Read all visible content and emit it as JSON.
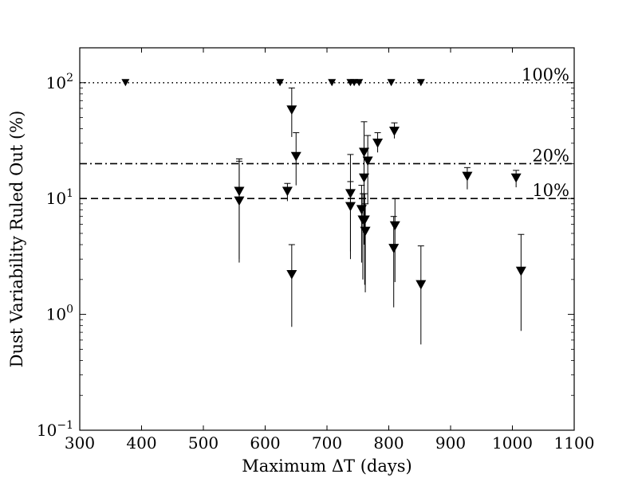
{
  "chart_data": {
    "type": "scatter",
    "title": "",
    "xlabel": "Maximum ΔT (days)",
    "ylabel": "Dust Variability Ruled Out (%)",
    "xlim": [
      300,
      1100
    ],
    "ylim": [
      0.1,
      200
    ],
    "yscale": "log",
    "grid": false,
    "x_ticks": [
      {
        "value": 300,
        "label": "300"
      },
      {
        "value": 400,
        "label": "400"
      },
      {
        "value": 500,
        "label": "500"
      },
      {
        "value": 600,
        "label": "600"
      },
      {
        "value": 700,
        "label": "700"
      },
      {
        "value": 800,
        "label": "800"
      },
      {
        "value": 900,
        "label": "900"
      },
      {
        "value": 1000,
        "label": "1000"
      },
      {
        "value": 1100,
        "label": "1100"
      }
    ],
    "y_ticks": [
      {
        "value": 0.1,
        "base": "10",
        "exp": "−1"
      },
      {
        "value": 1,
        "base": "10",
        "exp": "0"
      },
      {
        "value": 10,
        "base": "10",
        "exp": "1"
      },
      {
        "value": 100,
        "base": "10",
        "exp": "2"
      }
    ],
    "reference_lines": [
      {
        "y": 100,
        "label": "100%",
        "style": "dotted"
      },
      {
        "y": 20,
        "label": "20%",
        "style": "dashdot"
      },
      {
        "y": 10,
        "label": "10%",
        "style": "dashed"
      }
    ],
    "marker": "triangle-down",
    "marker_color": "#000000",
    "series": [
      {
        "points": [
          {
            "x": 374,
            "y": 100
          },
          {
            "x": 624,
            "y": 100
          },
          {
            "x": 708,
            "y": 100
          },
          {
            "x": 738,
            "y": 100
          },
          {
            "x": 744,
            "y": 100
          },
          {
            "x": 752,
            "y": 100
          },
          {
            "x": 804,
            "y": 100
          },
          {
            "x": 852,
            "y": 100
          },
          {
            "x": 558,
            "y": 11.5,
            "err_low": 3.0,
            "err_high": 22.0
          },
          {
            "x": 558,
            "y": 9.5,
            "err_low": 2.8,
            "err_high": 21.0
          },
          {
            "x": 636,
            "y": 11.5,
            "err_low": 9.5,
            "err_high": 13.5
          },
          {
            "x": 643,
            "y": 58,
            "err_low": 34,
            "err_high": 90
          },
          {
            "x": 643,
            "y": 2.2,
            "err_low": 0.78,
            "err_high": 4.0
          },
          {
            "x": 650,
            "y": 23,
            "err_low": 13,
            "err_high": 37
          },
          {
            "x": 738,
            "y": 11,
            "err_low": 3.5,
            "err_high": 24
          },
          {
            "x": 738,
            "y": 8.5,
            "err_low": 3.0,
            "err_high": 14
          },
          {
            "x": 756,
            "y": 8.0,
            "err_low": 2.8,
            "err_high": 13
          },
          {
            "x": 758,
            "y": 6.5,
            "err_low": 2.0,
            "err_high": 11
          },
          {
            "x": 760,
            "y": 25,
            "err_low": 7,
            "err_high": 46
          },
          {
            "x": 760,
            "y": 15,
            "err_low": 4,
            "err_high": 26
          },
          {
            "x": 761,
            "y": 6.5,
            "err_low": 1.8,
            "err_high": 11
          },
          {
            "x": 762,
            "y": 5.2,
            "err_low": 1.55,
            "err_high": 9
          },
          {
            "x": 766,
            "y": 21,
            "err_low": 9,
            "err_high": 35
          },
          {
            "x": 782,
            "y": 30,
            "err_low": 25,
            "err_high": 37
          },
          {
            "x": 808,
            "y": 3.7,
            "err_low": 1.15,
            "err_high": 7
          },
          {
            "x": 809,
            "y": 38,
            "err_low": 33,
            "err_high": 45
          },
          {
            "x": 810,
            "y": 5.8,
            "err_low": 1.9,
            "err_high": 10
          },
          {
            "x": 852,
            "y": 1.8,
            "err_low": 0.55,
            "err_high": 3.9
          },
          {
            "x": 927,
            "y": 15.5,
            "err_low": 12,
            "err_high": 18.5
          },
          {
            "x": 1006,
            "y": 15,
            "err_low": 12.5,
            "err_high": 17.5
          },
          {
            "x": 1014,
            "y": 2.35,
            "err_low": 0.72,
            "err_high": 4.9
          }
        ]
      }
    ]
  }
}
